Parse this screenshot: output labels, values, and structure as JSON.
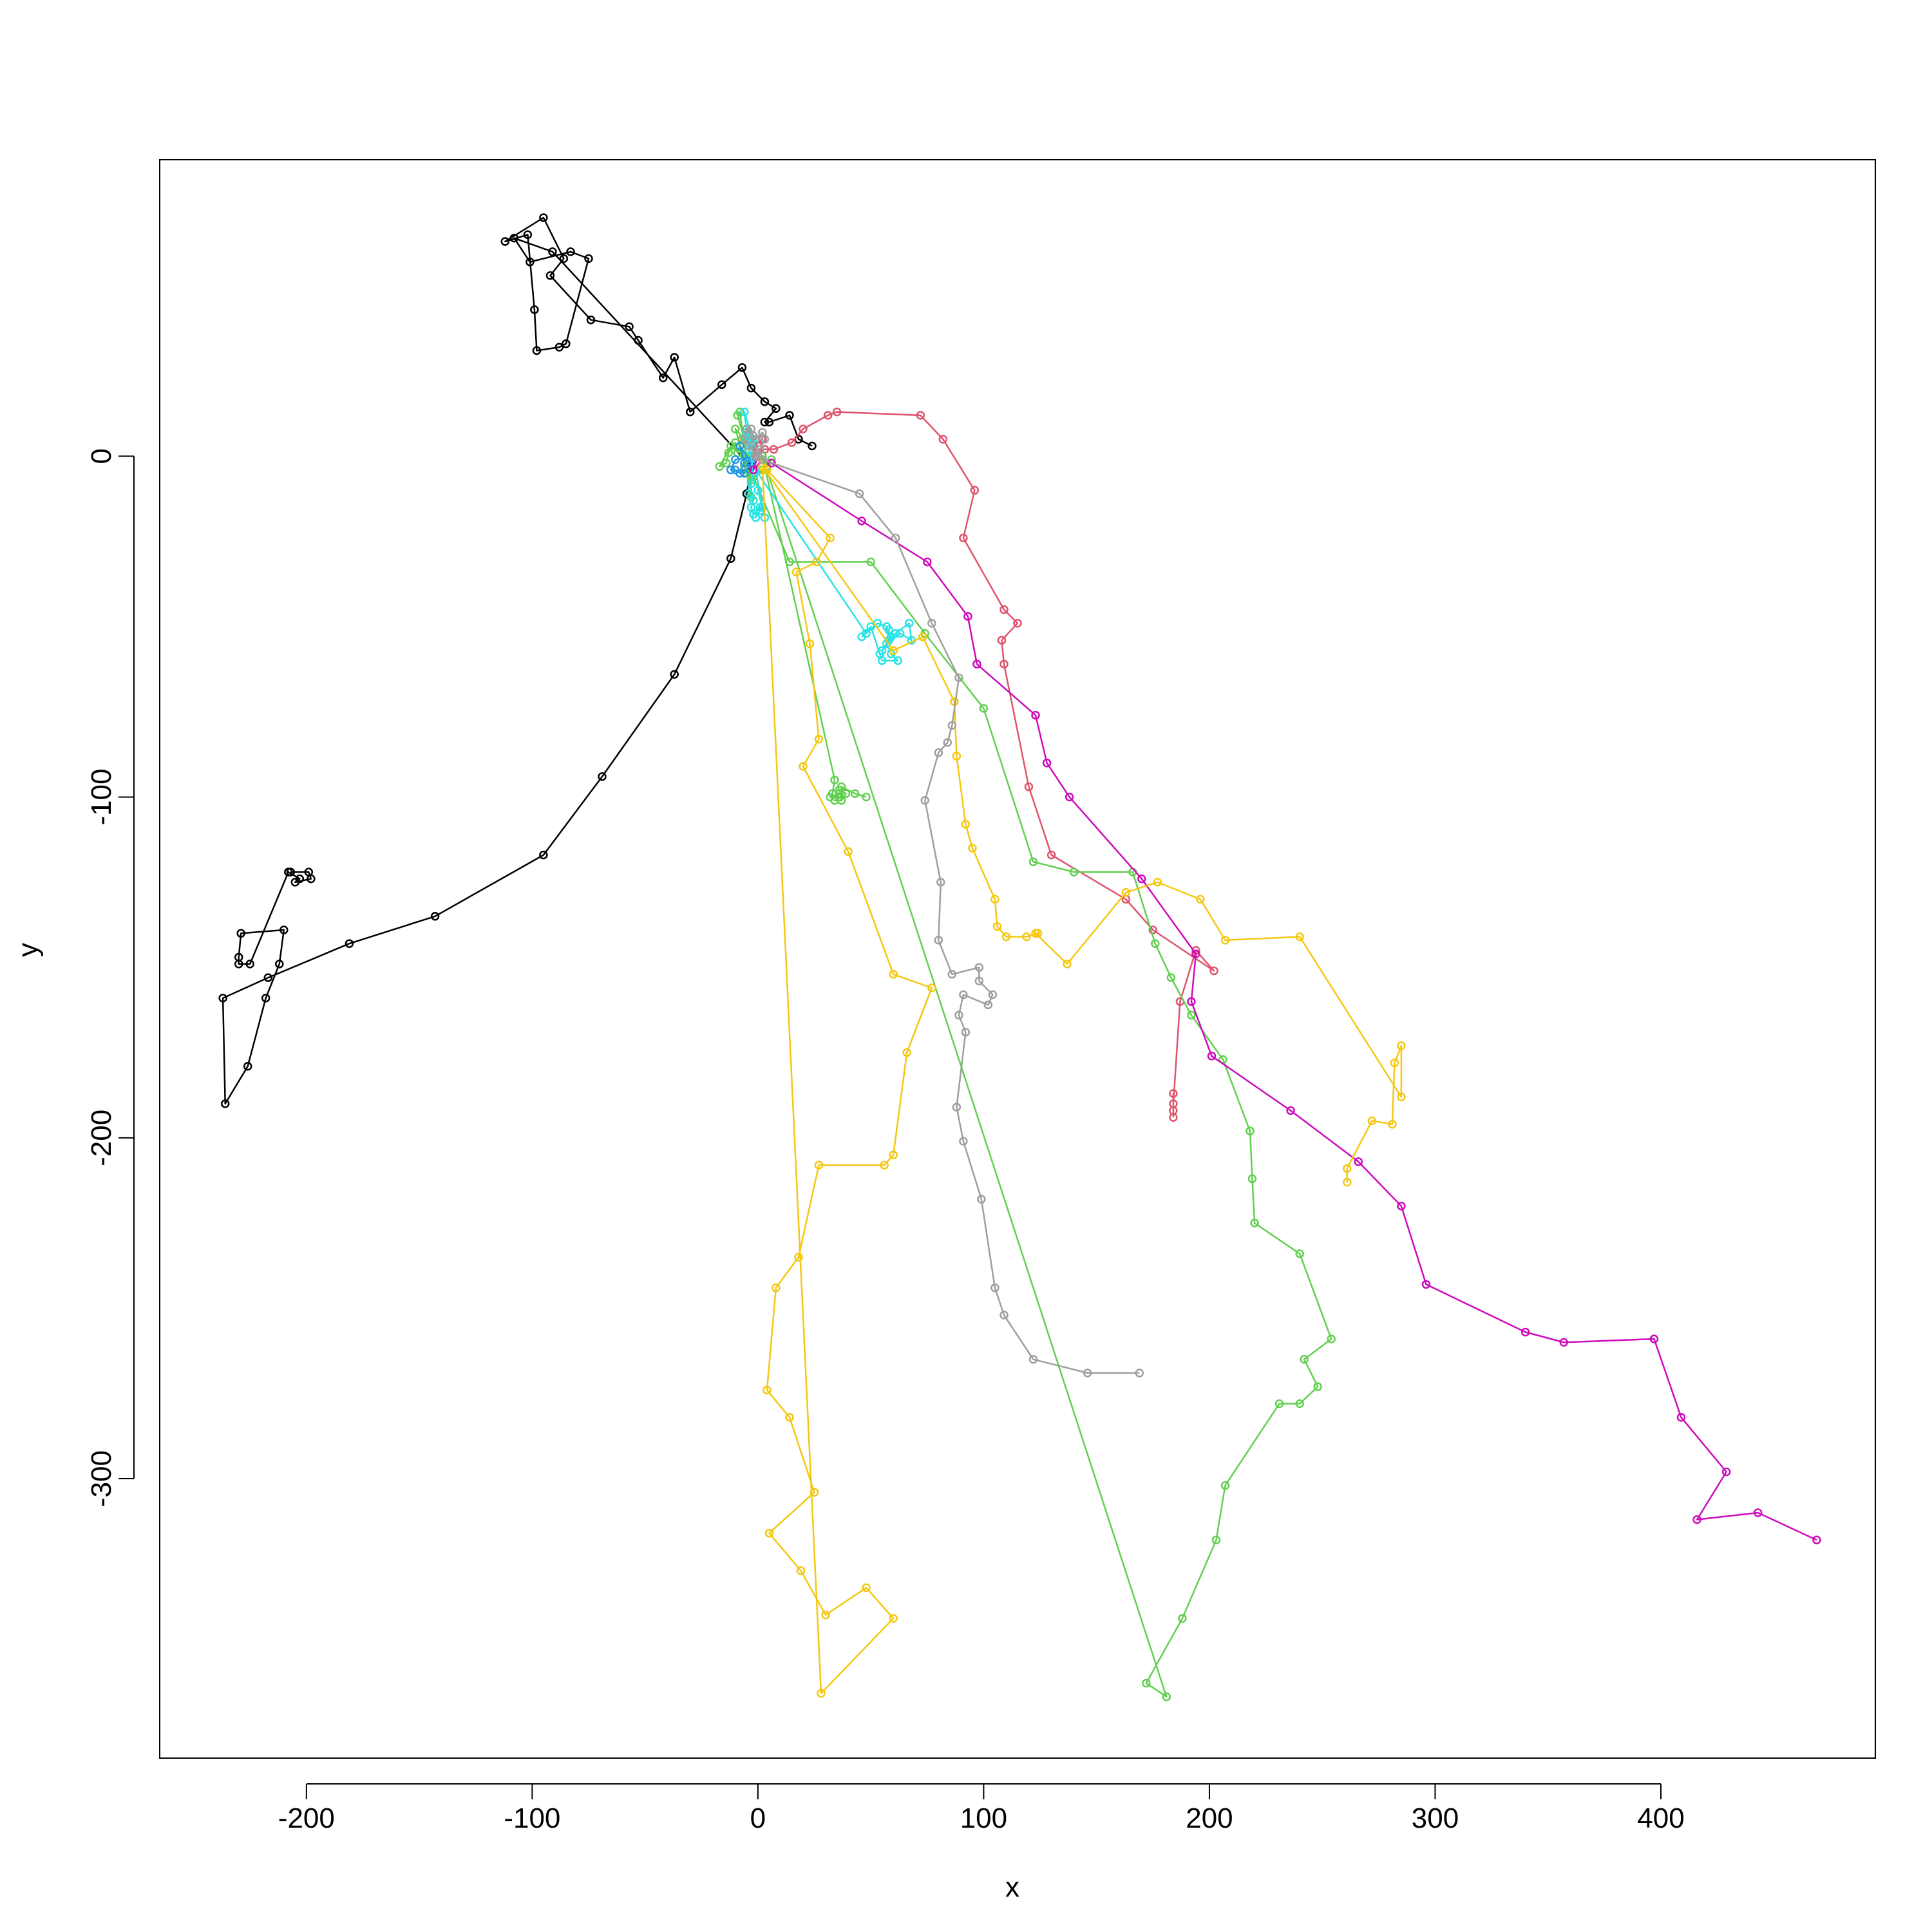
{
  "chart_data": {
    "type": "line",
    "title": "",
    "xlabel": "x",
    "ylabel": "y",
    "xlim": [
      -265,
      495
    ],
    "ylim": [
      -382,
      87
    ],
    "xticks": [
      -200,
      -100,
      0,
      100,
      200,
      300,
      400
    ],
    "yticks": [
      0,
      -100,
      -200,
      -300
    ],
    "xtick_labels": [
      "-200",
      "-100",
      "0",
      "100",
      "200",
      "300",
      "400"
    ],
    "ytick_labels": [
      "0",
      "-100",
      "-200",
      "-300"
    ],
    "grid": false,
    "legend": "none",
    "series": [
      {
        "color": "#000000",
        "points": [
          [
            24,
            3
          ],
          [
            18,
            5
          ],
          [
            14,
            12
          ],
          [
            5,
            10
          ],
          [
            3,
            10
          ],
          [
            8,
            14
          ],
          [
            3,
            16
          ],
          [
            -3,
            20
          ],
          [
            -7,
            26
          ],
          [
            -16,
            21
          ],
          [
            -30,
            13
          ],
          [
            -37,
            29
          ],
          [
            -42,
            23
          ],
          [
            -53,
            34
          ],
          [
            -57,
            38
          ],
          [
            -74,
            40
          ],
          [
            -92,
            53
          ],
          [
            -86,
            58
          ],
          [
            -95,
            70
          ],
          [
            -112,
            63
          ],
          [
            -102,
            65
          ],
          [
            -99,
            43
          ],
          [
            -98,
            31
          ],
          [
            -88,
            32
          ],
          [
            -85,
            33
          ],
          [
            -75,
            58
          ],
          [
            -83,
            60
          ],
          [
            -101,
            57
          ],
          [
            -108,
            64
          ],
          [
            -91,
            60
          ],
          [
            -3,
            -3
          ],
          [
            -5,
            -11
          ],
          [
            -12,
            -30
          ],
          [
            -37,
            -64
          ],
          [
            -69,
            -94
          ],
          [
            -95,
            -117
          ],
          [
            -143,
            -135
          ],
          [
            -181,
            -143
          ],
          [
            -217,
            -153
          ],
          [
            -237,
            -159
          ],
          [
            -236,
            -190
          ],
          [
            -226,
            -179
          ],
          [
            -218,
            -159
          ],
          [
            -212,
            -149
          ],
          [
            -210,
            -139
          ],
          [
            -229,
            -140
          ],
          [
            -230,
            -147
          ],
          [
            -230,
            -149
          ],
          [
            -225,
            -149
          ],
          [
            -208,
            -122
          ],
          [
            -203,
            -124
          ],
          [
            -205,
            -125
          ],
          [
            -198,
            -124
          ],
          [
            -199,
            -122
          ],
          [
            -207,
            -122
          ]
        ]
      },
      {
        "color": "#DF536B",
        "points": [
          [
            0,
            0
          ],
          [
            -2,
            3
          ],
          [
            2,
            5
          ],
          [
            -4,
            2
          ],
          [
            0,
            3
          ],
          [
            -3,
            0
          ],
          [
            3,
            2
          ],
          [
            7,
            2
          ],
          [
            15,
            4
          ],
          [
            20,
            8
          ],
          [
            31,
            12
          ],
          [
            35,
            13
          ],
          [
            72,
            12
          ],
          [
            82,
            5
          ],
          [
            96,
            -10
          ],
          [
            91,
            -24
          ],
          [
            109,
            -45
          ],
          [
            115,
            -49
          ],
          [
            108,
            -54
          ],
          [
            109,
            -61
          ],
          [
            120,
            -97
          ],
          [
            130,
            -117
          ],
          [
            163,
            -130
          ],
          [
            175,
            -139
          ],
          [
            202,
            -151
          ],
          [
            194,
            -145
          ],
          [
            187,
            -160
          ],
          [
            184,
            -190
          ],
          [
            184,
            -192
          ],
          [
            184,
            -187
          ],
          [
            184,
            -194
          ]
        ]
      },
      {
        "color": "#61D04F",
        "points": [
          [
            0,
            0
          ],
          [
            -6,
            0
          ],
          [
            -12,
            3
          ],
          [
            -17,
            -3
          ],
          [
            -14,
            -2
          ],
          [
            -13,
            1
          ],
          [
            -10,
            4
          ],
          [
            -9,
            1
          ],
          [
            -7,
            5
          ],
          [
            -5,
            6
          ],
          [
            -4,
            2
          ],
          [
            -3,
            0
          ],
          [
            -6,
            -3
          ],
          [
            -5,
            -5
          ],
          [
            -3,
            -8
          ],
          [
            -3,
            -12
          ],
          [
            -8,
            13
          ],
          [
            -9,
            12
          ],
          [
            -6,
            5
          ],
          [
            -10,
            8
          ],
          [
            -3,
            -7
          ],
          [
            4,
            -3
          ],
          [
            6,
            -1
          ],
          [
            2,
            -4
          ],
          [
            -2,
            -6
          ],
          [
            14,
            -31
          ],
          [
            50,
            -31
          ],
          [
            74,
            -52
          ],
          [
            100,
            -74
          ],
          [
            122,
            -119
          ],
          [
            140,
            -122
          ],
          [
            166,
            -122
          ],
          [
            176,
            -143
          ],
          [
            183,
            -153
          ],
          [
            192,
            -164
          ],
          [
            206,
            -177
          ],
          [
            218,
            -198
          ],
          [
            219,
            -212
          ],
          [
            220,
            -225
          ],
          [
            240,
            -234
          ],
          [
            254,
            -259
          ],
          [
            242,
            -265
          ],
          [
            248,
            -273
          ],
          [
            240,
            -278
          ],
          [
            231,
            -278
          ],
          [
            207,
            -302
          ],
          [
            203,
            -318
          ],
          [
            188,
            -341
          ],
          [
            172,
            -360
          ],
          [
            181,
            -364
          ],
          [
            2,
            0
          ],
          [
            34,
            -95
          ],
          [
            33,
            -99
          ],
          [
            32,
            -100
          ],
          [
            36,
            -99
          ],
          [
            34,
            -101
          ],
          [
            37,
            -101
          ],
          [
            36,
            -98
          ],
          [
            39,
            -99
          ],
          [
            37,
            -101
          ],
          [
            37,
            -97
          ],
          [
            43,
            -99
          ],
          [
            48,
            -100
          ]
        ]
      },
      {
        "color": "#2297E6",
        "points": [
          [
            0,
            0
          ],
          [
            -10,
            -1
          ],
          [
            -12,
            -4
          ],
          [
            -6,
            -5
          ],
          [
            -3,
            -2
          ],
          [
            -8,
            3
          ],
          [
            -6,
            -2
          ],
          [
            -8,
            -5
          ],
          [
            -10,
            -4
          ]
        ]
      },
      {
        "color": "#28E2E5",
        "points": [
          [
            0,
            0
          ],
          [
            -6,
            13
          ],
          [
            -5,
            7
          ],
          [
            -4,
            6
          ],
          [
            -2,
            5
          ],
          [
            -4,
            2
          ],
          [
            -3,
            5
          ],
          [
            -5,
            6
          ],
          [
            -2,
            -4
          ],
          [
            -3,
            -8
          ],
          [
            -4,
            -11
          ],
          [
            -2,
            -13
          ],
          [
            -3,
            -15
          ],
          [
            -2,
            -17
          ],
          [
            1,
            -15
          ],
          [
            1,
            -16
          ],
          [
            -1,
            -18
          ],
          [
            2,
            -15
          ],
          [
            0,
            -10
          ],
          [
            3,
            -18
          ],
          [
            -1,
            -4
          ],
          [
            48,
            -52
          ],
          [
            53,
            -49
          ],
          [
            57,
            -50
          ],
          [
            58,
            -54
          ],
          [
            58,
            -51
          ],
          [
            59,
            -53
          ],
          [
            55,
            -57
          ],
          [
            61,
            -52
          ],
          [
            67,
            -49
          ],
          [
            68,
            -54
          ],
          [
            63,
            -52
          ],
          [
            58,
            -54
          ],
          [
            57,
            -55
          ],
          [
            59,
            -58
          ],
          [
            62,
            -60
          ],
          [
            55,
            -60
          ],
          [
            54,
            -58
          ],
          [
            50,
            -50
          ],
          [
            46,
            -53
          ]
        ]
      },
      {
        "color": "#CD0BBC",
        "points": [
          [
            0,
            0
          ],
          [
            -2,
            -4
          ],
          [
            2,
            -1
          ],
          [
            6,
            -2
          ],
          [
            46,
            -19
          ],
          [
            75,
            -31
          ],
          [
            93,
            -47
          ],
          [
            97,
            -61
          ],
          [
            123,
            -76
          ],
          [
            128,
            -90
          ],
          [
            138,
            -100
          ],
          [
            170,
            -124
          ],
          [
            194,
            -146
          ],
          [
            192,
            -160
          ],
          [
            201,
            -176
          ],
          [
            236,
            -192
          ],
          [
            266,
            -207
          ],
          [
            285,
            -220
          ],
          [
            296,
            -243
          ],
          [
            340,
            -257
          ],
          [
            357,
            -260
          ],
          [
            397,
            -259
          ],
          [
            409,
            -282
          ],
          [
            429,
            -298
          ],
          [
            416,
            -312
          ],
          [
            443,
            -310
          ],
          [
            469,
            -318
          ]
        ]
      },
      {
        "color": "#F5C710",
        "points": [
          [
            0,
            0
          ],
          [
            4,
            -4
          ],
          [
            32,
            -24
          ],
          [
            26,
            -31
          ],
          [
            17,
            -34
          ],
          [
            23,
            -55
          ],
          [
            27,
            -83
          ],
          [
            20,
            -91
          ],
          [
            40,
            -116
          ],
          [
            60,
            -152
          ],
          [
            77,
            -156
          ],
          [
            66,
            -175
          ],
          [
            60,
            -205
          ],
          [
            56,
            -208
          ],
          [
            27,
            -208
          ],
          [
            18,
            -235
          ],
          [
            8,
            -244
          ],
          [
            4,
            -274
          ],
          [
            14,
            -282
          ],
          [
            25,
            -304
          ],
          [
            5,
            -316
          ],
          [
            19,
            -327
          ],
          [
            30,
            -340
          ],
          [
            48,
            -332
          ],
          [
            60,
            -341
          ],
          [
            28,
            -363
          ],
          [
            2,
            -3
          ],
          [
            60,
            -57
          ],
          [
            73,
            -53
          ],
          [
            87,
            -72
          ],
          [
            88,
            -88
          ],
          [
            92,
            -108
          ],
          [
            95,
            -115
          ],
          [
            105,
            -130
          ],
          [
            106,
            -138
          ],
          [
            110,
            -141
          ],
          [
            119,
            -141
          ],
          [
            124,
            -140
          ],
          [
            123,
            -140
          ],
          [
            137,
            -149
          ],
          [
            163,
            -128
          ],
          [
            177,
            -125
          ],
          [
            196,
            -130
          ],
          [
            207,
            -142
          ],
          [
            240,
            -141
          ],
          [
            285,
            -188
          ],
          [
            285,
            -173
          ],
          [
            282,
            -178
          ],
          [
            281,
            -196
          ],
          [
            272,
            -195
          ],
          [
            261,
            -209
          ],
          [
            261,
            -213
          ]
        ]
      },
      {
        "color": "#9E9E9E",
        "points": [
          [
            0,
            0
          ],
          [
            -4,
            3
          ],
          [
            -6,
            5
          ],
          [
            -5,
            8
          ],
          [
            -3,
            8
          ],
          [
            -2,
            6
          ],
          [
            -1,
            5
          ],
          [
            2,
            7
          ],
          [
            3,
            5
          ],
          [
            1,
            2
          ],
          [
            -1,
            0
          ],
          [
            2,
            -1
          ],
          [
            45,
            -11
          ],
          [
            61,
            -24
          ],
          [
            77,
            -49
          ],
          [
            89,
            -65
          ],
          [
            86,
            -79
          ],
          [
            84,
            -84
          ],
          [
            80,
            -87
          ],
          [
            74,
            -101
          ],
          [
            81,
            -125
          ],
          [
            80,
            -142
          ],
          [
            86,
            -152
          ],
          [
            98,
            -150
          ],
          [
            98,
            -154
          ],
          [
            104,
            -158
          ],
          [
            102,
            -161
          ],
          [
            91,
            -158
          ],
          [
            89,
            -164
          ],
          [
            92,
            -169
          ],
          [
            88,
            -191
          ],
          [
            91,
            -201
          ],
          [
            99,
            -218
          ],
          [
            105,
            -244
          ],
          [
            109,
            -252
          ],
          [
            122,
            -265
          ],
          [
            146,
            -269
          ],
          [
            169,
            -269
          ]
        ]
      }
    ]
  }
}
